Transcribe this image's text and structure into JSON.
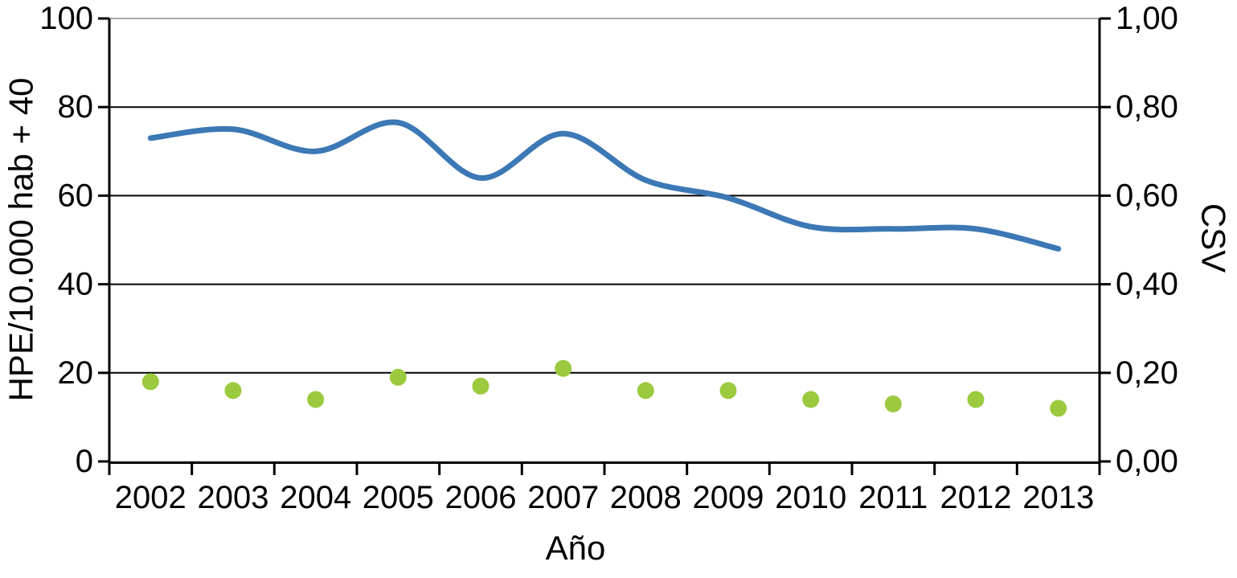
{
  "chart_data": {
    "type": "line",
    "title": "",
    "legend": "none",
    "background": "#ffffff",
    "x_axis": {
      "title": "Año",
      "categories": [
        "2002",
        "2003",
        "2004",
        "2005",
        "2006",
        "2007",
        "2008",
        "2009",
        "2010",
        "2011",
        "2012",
        "2013"
      ]
    },
    "left_axis": {
      "title": "HPE/10.000 hab + 40",
      "min": 0,
      "max": 100,
      "tick_values": [
        0,
        20,
        40,
        60,
        80,
        100
      ],
      "tick_labels": [
        "0",
        "20",
        "40",
        "60",
        "80",
        "100"
      ]
    },
    "right_axis": {
      "title": "CSV",
      "min": 0,
      "max": 1,
      "tick_values": [
        0,
        0.2,
        0.4,
        0.6,
        0.8,
        1
      ],
      "tick_labels": [
        "0,00",
        "0,20",
        "0,40",
        "0,60",
        "0,80",
        "1,00"
      ]
    },
    "series": [
      {
        "name": "HPE/10.000 hab + 40",
        "type": "line",
        "axis": "left",
        "smooth": true,
        "color": "#3C78B5",
        "stroke_width": 7,
        "values": [
          73,
          75,
          70,
          76.5,
          64,
          74,
          63.5,
          59.5,
          53,
          52.5,
          52.5,
          48
        ]
      },
      {
        "name": "CSV",
        "type": "scatter",
        "axis": "right",
        "color": "#9BCA3E",
        "marker_radius": 10.5,
        "values": [
          0.18,
          0.16,
          0.14,
          0.19,
          0.17,
          0.21,
          0.16,
          0.16,
          0.14,
          0.13,
          0.14,
          0.12
        ]
      }
    ],
    "grid": {
      "horizontal": true,
      "line_color": "#000000",
      "top_border_color": "#A6A6A6",
      "axis_color": "#000000"
    }
  }
}
